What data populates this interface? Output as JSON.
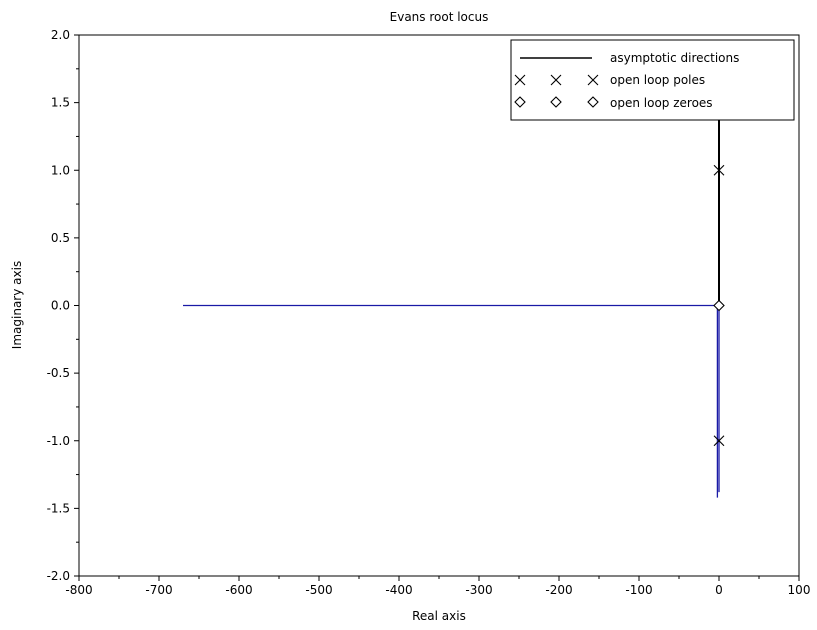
{
  "chart_data": {
    "type": "line",
    "title": "Evans root locus",
    "xlabel": "Real axis",
    "ylabel": "Imaginary axis",
    "xlim": [
      -800,
      100
    ],
    "ylim": [
      -2.0,
      2.0
    ],
    "xticks": [
      -800,
      -700,
      -600,
      -500,
      -400,
      -300,
      -200,
      -100,
      0,
      100
    ],
    "xtick_labels": [
      "-800",
      "-700",
      "-600",
      "-500",
      "-400",
      "-300",
      "-200",
      "-100",
      "0",
      "100"
    ],
    "yticks": [
      -2.0,
      -1.5,
      -1.0,
      -0.5,
      0.0,
      0.5,
      1.0,
      1.5,
      2.0
    ],
    "ytick_labels": [
      "-2.0",
      "-1.5",
      "-1.0",
      "-0.5",
      "0.0",
      "0.5",
      "1.0",
      "1.5",
      "2.0"
    ],
    "grid": false,
    "legend": {
      "placement": "top-right",
      "entries": [
        {
          "label": "asymptotic directions",
          "marker": "line"
        },
        {
          "label": "open loop poles",
          "marker": "x"
        },
        {
          "label": "open loop zeroes",
          "marker": "diamond"
        }
      ]
    },
    "series": [
      {
        "kind": "line",
        "color": "#000000",
        "points": [
          [
            0,
            0
          ],
          [
            0,
            1.0
          ],
          [
            0,
            1.45
          ]
        ]
      },
      {
        "kind": "line",
        "color": "#1a1aa6",
        "points": [
          [
            -670,
            0
          ],
          [
            0,
            0
          ]
        ]
      },
      {
        "kind": "line",
        "color": "#1a1aa6",
        "points": [
          [
            -2,
            0
          ],
          [
            -2,
            -1.42
          ]
        ]
      },
      {
        "kind": "line",
        "color": "#1a1aa6",
        "points": [
          [
            0,
            0
          ],
          [
            0,
            -1.38
          ]
        ]
      }
    ],
    "poles": [
      [
        0,
        1.0
      ],
      [
        0,
        -1.0
      ]
    ],
    "zeroes": [
      [
        0,
        0
      ]
    ]
  }
}
